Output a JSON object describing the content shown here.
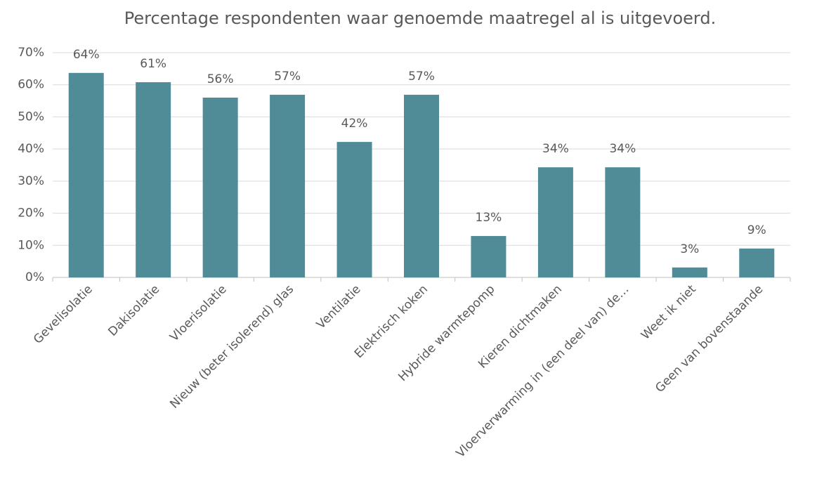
{
  "chart_data": {
    "type": "bar",
    "title": "Percentage respondenten waar genoemde maatregel al is uitgevoerd.",
    "categories": [
      "Gevelisolatie",
      "Dakisolatie",
      "Vloerisolatie",
      "Nieuw (beter isolerend) glas",
      "Ventilatie",
      "Elektrisch koken",
      "Hybride warmtepomp",
      "Kieren dichtmaken",
      "Vloerverwarming in (een deel van) de…",
      "Weet ik niet",
      "Geen van bovenstaande"
    ],
    "values": [
      63.7,
      60.8,
      56.0,
      56.9,
      42.2,
      56.9,
      12.9,
      34.3,
      34.3,
      3.1,
      9.0
    ],
    "value_labels": [
      "64%",
      "61%",
      "56%",
      "57%",
      "42%",
      "57%",
      "13%",
      "34%",
      "34%",
      "3%",
      "9%"
    ],
    "color": "#508c98",
    "ylim": [
      0,
      70
    ],
    "yticks": [
      {
        "value": 0,
        "label": "0%"
      },
      {
        "value": 10,
        "label": "10%"
      },
      {
        "value": 20,
        "label": "20%"
      },
      {
        "value": 30,
        "label": "30%"
      },
      {
        "value": 40,
        "label": "40%"
      },
      {
        "value": 50,
        "label": "50%"
      },
      {
        "value": 60,
        "label": "60%"
      },
      {
        "value": 70,
        "label": "70%"
      }
    ],
    "grid": true
  }
}
